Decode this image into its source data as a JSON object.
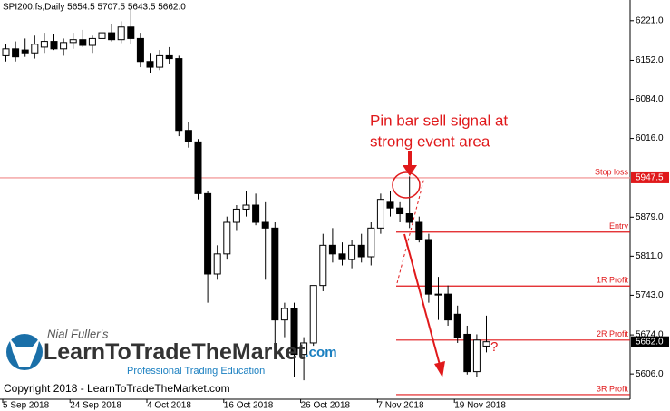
{
  "chart_data": {
    "type": "candlestick",
    "title": "SPI200.fs,Daily  5654.5 5707.5 5643.5 5662.0",
    "categories": [
      "5 Sep 2018",
      null,
      null,
      null,
      null,
      null,
      null,
      "24 Sep 2018",
      null,
      null,
      null,
      null,
      null,
      null,
      null,
      "4 Oct 2018",
      null,
      null,
      null,
      null,
      null,
      null,
      null,
      "16 Oct 2018",
      null,
      null,
      null,
      null,
      null,
      null,
      null,
      "26 Oct 2018",
      null,
      null,
      null,
      null,
      null,
      null,
      null,
      "7 Nov 2018",
      null,
      null,
      null,
      null,
      null,
      null,
      null,
      "19 Nov 2018",
      null,
      null,
      null
    ],
    "open": [
      6160,
      6172,
      6170,
      6165,
      6175,
      6185,
      6172,
      6183,
      6188,
      6178,
      6190,
      6200,
      6188,
      6210,
      6190,
      6150,
      6140,
      6160,
      6155,
      6030,
      6010,
      5920,
      5780,
      5815,
      5870,
      5893,
      5900,
      5870,
      5860,
      5700,
      5720,
      5640,
      5660,
      5760,
      5830,
      5815,
      5805,
      5830,
      5810,
      5860,
      5905,
      5895,
      5885,
      5870,
      5840,
      5745,
      5745,
      5710,
      5675,
      5610,
      5654.5
    ],
    "high": [
      6180,
      6185,
      6190,
      6195,
      6200,
      6198,
      6190,
      6200,
      6205,
      6195,
      6215,
      6215,
      6220,
      6240,
      6200,
      6165,
      6170,
      6175,
      6160,
      6045,
      6015,
      5925,
      5830,
      5880,
      5900,
      5925,
      5920,
      5905,
      5870,
      5730,
      5730,
      5670,
      5760,
      5850,
      5860,
      5835,
      5840,
      5850,
      5870,
      5920,
      5925,
      5905,
      5950,
      5880,
      5850,
      5775,
      5760,
      5725,
      5690,
      5675,
      5707.5
    ],
    "low": [
      6150,
      6150,
      6158,
      6155,
      6165,
      6170,
      6160,
      6172,
      6175,
      6165,
      6180,
      6185,
      6182,
      6180,
      6140,
      6130,
      6135,
      6145,
      6020,
      6000,
      5910,
      5730,
      5770,
      5805,
      5855,
      5880,
      5865,
      5770,
      5650,
      5670,
      5600,
      5595,
      5655,
      5750,
      5800,
      5795,
      5790,
      5800,
      5795,
      5850,
      5880,
      5870,
      5860,
      5835,
      5730,
      5700,
      5690,
      5660,
      5605,
      5600,
      5643.5
    ],
    "close": [
      6172,
      6158,
      6165,
      6180,
      6185,
      6172,
      6183,
      6188,
      6178,
      6190,
      6200,
      6188,
      6210,
      6190,
      6150,
      6140,
      6160,
      6155,
      6030,
      6010,
      5920,
      5780,
      5815,
      5870,
      5893,
      5900,
      5870,
      5860,
      5700,
      5720,
      5640,
      5660,
      5760,
      5830,
      5815,
      5805,
      5830,
      5810,
      5860,
      5910,
      5895,
      5885,
      5870,
      5840,
      5745,
      5745,
      5700,
      5670,
      5610,
      5665,
      5662
    ],
    "ylim": [
      5562,
      6257
    ],
    "yticks": [
      {
        "value": 6221,
        "label": "6221.0"
      },
      {
        "value": 6152,
        "label": "6152.0"
      },
      {
        "value": 6084,
        "label": "6084.0"
      },
      {
        "value": 6016,
        "label": "6016.0"
      },
      {
        "value": 5879,
        "label": "5879.0"
      },
      {
        "value": 5811,
        "label": "5811.0"
      },
      {
        "value": 5743,
        "label": "5743.0"
      },
      {
        "value": 5674,
        "label": "5674.0"
      },
      {
        "value": 5606,
        "label": "5606.0"
      }
    ],
    "price_markers": [
      {
        "value": 5947.5,
        "label": "5947.5",
        "color": "#e0191b"
      },
      {
        "value": 5662,
        "label": "5662.0",
        "color": "#000000"
      }
    ],
    "levels": [
      {
        "label": "Stop loss",
        "value": 5947.5,
        "color": "#f08a8a"
      },
      {
        "label": "Entry",
        "value": 5853,
        "color": "#e0191b"
      },
      {
        "label": "1R Profit",
        "value": 5759,
        "color": "#e0191b"
      },
      {
        "label": "2R Profit",
        "value": 5665,
        "color": "#e0191b"
      },
      {
        "label": "3R Profit",
        "value": 5570,
        "color": "#e0191b"
      }
    ],
    "annotation": [
      "Pin bar sell signal at",
      "strong event area"
    ],
    "question": "?",
    "copyright": "Copyright 2018 - LearnToTradeTheMarket.com",
    "logo": {
      "author": "Nial Fuller's",
      "brand": "LearnToTradeTheMarket",
      "domain": ".com",
      "tagline": "Professional Trading Education"
    }
  }
}
